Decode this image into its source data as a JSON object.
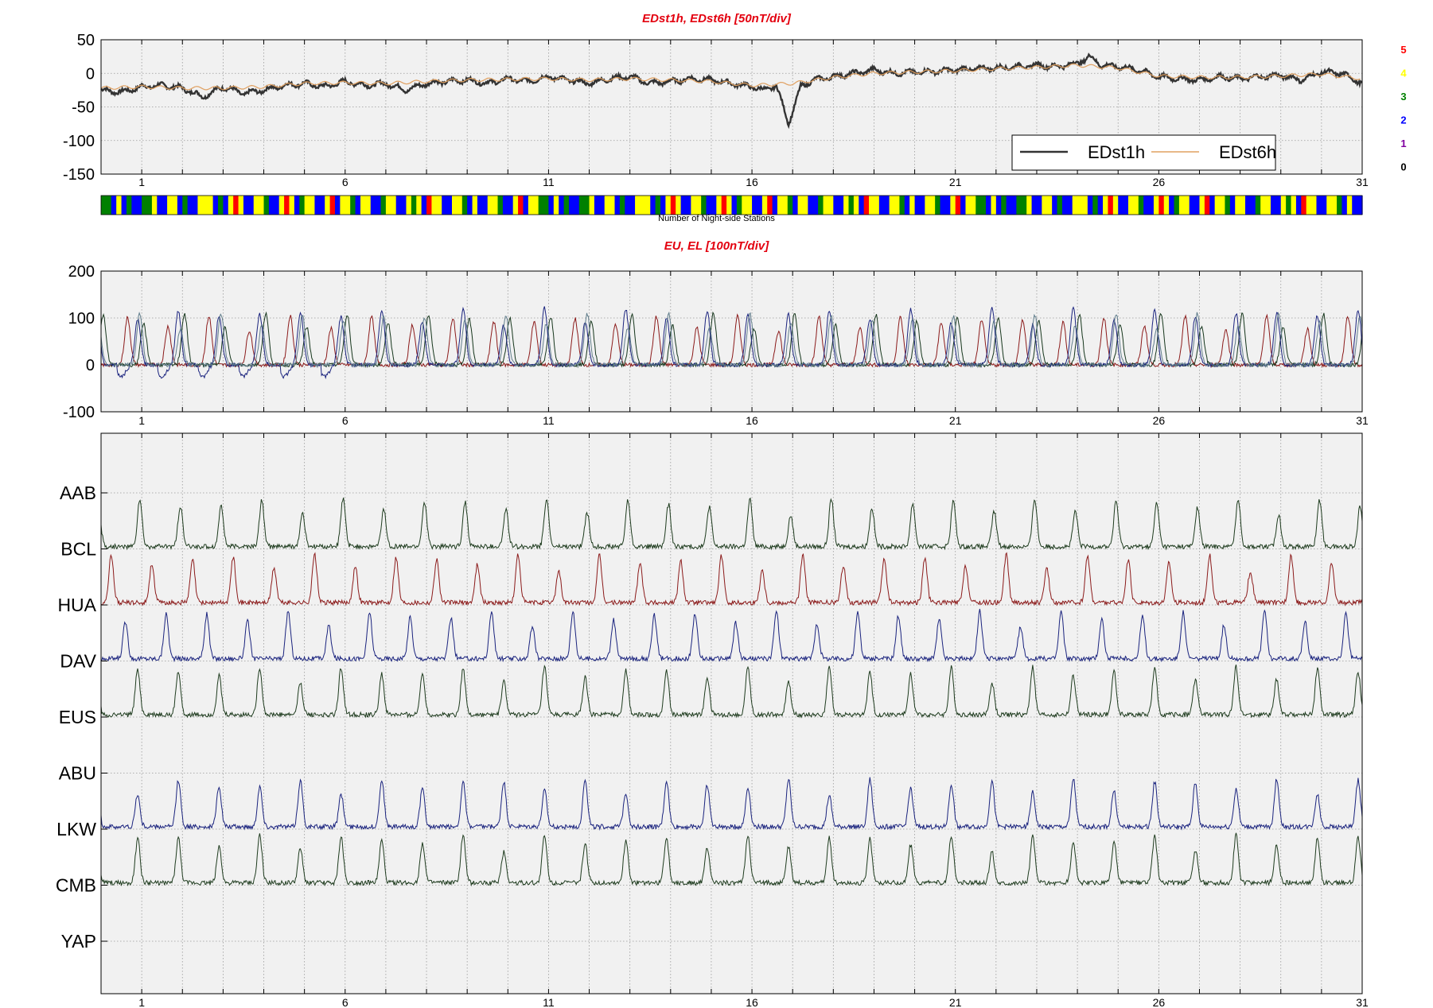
{
  "chart_data": [
    {
      "type": "line",
      "title": "EDst1h, EDst6h [50nT/div]",
      "ylim": [
        -150,
        50
      ],
      "yticks": [
        50,
        0,
        -50,
        -100,
        -150
      ],
      "xlim": [
        0,
        31
      ],
      "xticks": [
        1,
        6,
        11,
        16,
        21,
        26,
        31
      ],
      "grid": true,
      "legend_position": "bottom-right",
      "series": [
        {
          "name": "EDst1h",
          "color": "#333333",
          "x": [
            0,
            0.5,
            1,
            1.5,
            2,
            2.5,
            3,
            3.5,
            4,
            4.5,
            5,
            5.5,
            6,
            6.5,
            7,
            7.5,
            8,
            8.5,
            9,
            9.5,
            10,
            10.5,
            11,
            11.5,
            12,
            12.5,
            13,
            13.5,
            14,
            14.5,
            15,
            15.5,
            16,
            16.3,
            16.6,
            16.9,
            17.2,
            17.5,
            18,
            18.5,
            19,
            19.5,
            20,
            20.5,
            21,
            21.5,
            22,
            22.5,
            23,
            23.5,
            24,
            24.3,
            24.6,
            25,
            25.5,
            26,
            26.5,
            27,
            27.5,
            28,
            28.5,
            29,
            29.5,
            30,
            30.5,
            31
          ],
          "values": [
            -25,
            -28,
            -20,
            -18,
            -22,
            -35,
            -20,
            -30,
            -25,
            -18,
            -15,
            -20,
            -12,
            -18,
            -15,
            -25,
            -15,
            -12,
            -10,
            -15,
            -8,
            -12,
            -5,
            -10,
            -15,
            -8,
            -5,
            -15,
            -12,
            -8,
            -10,
            -15,
            -20,
            -25,
            -18,
            -75,
            -20,
            -10,
            -5,
            0,
            5,
            0,
            2,
            3,
            5,
            7,
            8,
            10,
            12,
            10,
            15,
            25,
            12,
            10,
            5,
            -5,
            -8,
            -10,
            -5,
            -8,
            -5,
            -3,
            -10,
            2,
            0,
            -15
          ]
        },
        {
          "name": "EDst6h",
          "color": "#e0a060",
          "x": [
            0,
            1,
            2,
            3,
            4,
            5,
            6,
            7,
            8,
            9,
            10,
            11,
            12,
            13,
            14,
            15,
            16,
            17,
            18,
            19,
            20,
            21,
            22,
            23,
            24,
            25,
            26,
            27,
            28,
            29,
            30,
            31
          ],
          "values": [
            -22,
            -20,
            -22,
            -22,
            -20,
            -15,
            -14,
            -15,
            -12,
            -10,
            -9,
            -8,
            -10,
            -8,
            -10,
            -12,
            -18,
            -15,
            -6,
            0,
            2,
            4,
            7,
            9,
            12,
            8,
            -4,
            -6,
            -6,
            -4,
            -1,
            -8
          ]
        }
      ],
      "right_scale_labels": [
        {
          "text": "5",
          "color": "#ff0000"
        },
        {
          "text": "4",
          "color": "#ffff00"
        },
        {
          "text": "3",
          "color": "#008000"
        },
        {
          "text": "2",
          "color": "#0000ff"
        },
        {
          "text": "1",
          "color": "#8000a0"
        },
        {
          "text": "0",
          "color": "#000000"
        }
      ]
    },
    {
      "type": "heatmap",
      "caption": "Number of Night-side Stations",
      "colors": {
        "0": "#000000",
        "1": "#800080",
        "2": "#0000ff",
        "3": "#008000",
        "4": "#ffff00",
        "5": "#ff0000"
      },
      "values_note": "one cell per hour, value 0-5",
      "pattern": [
        3,
        3,
        2,
        4,
        2,
        3,
        2,
        2,
        3,
        3,
        4,
        2,
        2,
        4,
        4,
        2,
        3,
        2,
        2,
        4,
        4,
        4,
        2,
        3,
        2,
        4,
        5,
        4,
        2,
        2,
        4,
        4,
        3,
        2,
        2,
        4,
        5,
        4,
        2,
        3,
        4,
        4,
        2,
        2,
        4,
        5,
        2,
        4,
        4,
        3,
        2,
        4,
        4,
        2,
        2,
        3,
        4,
        4,
        2,
        2,
        4,
        3,
        4,
        2,
        5,
        4,
        4,
        2,
        2,
        4,
        4,
        3,
        2,
        4,
        2,
        2,
        4,
        4,
        3,
        2,
        2,
        4,
        5,
        2,
        4,
        4
      ]
    },
    {
      "type": "line",
      "title": "EU, EL   [100nT/div]",
      "ylim": [
        -100,
        200
      ],
      "yticks": [
        200,
        100,
        0,
        -100
      ],
      "xlim": [
        0,
        31
      ],
      "xticks": [
        1,
        6,
        11,
        16,
        21,
        26,
        31
      ],
      "grid": true,
      "series": [
        {
          "color": "#8b1a1a",
          "phase": 0.15,
          "amp": 95
        },
        {
          "color": "#16361c",
          "phase": 0.55,
          "amp": 100
        },
        {
          "color": "#1a237e",
          "phase": 0.4,
          "amp": 110
        },
        {
          "color": "#607d8b",
          "phase": 0.45,
          "amp": 100
        }
      ]
    },
    {
      "type": "line",
      "title": "",
      "xlim": [
        0,
        31
      ],
      "xticks": [
        1,
        6,
        11,
        16,
        21,
        26,
        31
      ],
      "grid": true,
      "stations": [
        {
          "label": "AAB",
          "color": "#1e3b1e",
          "phase": 0.45
        },
        {
          "label": "BCL",
          "color": "#8b1a1a",
          "phase": 0.75
        },
        {
          "label": "HUA",
          "color": "#1a237e",
          "phase": 0.1
        },
        {
          "label": "DAV",
          "color": "#1e3b1e",
          "phase": 0.4
        },
        {
          "label": "EUS",
          "color": "#ffffff",
          "phase": 0.0
        },
        {
          "label": "ABU",
          "color": "#1a237e",
          "phase": 0.4
        },
        {
          "label": "LKW",
          "color": "#1e3b1e",
          "phase": 0.4
        },
        {
          "label": "CMB",
          "color": "#ffffff",
          "phase": 0.0
        },
        {
          "label": "YAP",
          "color": "#ffffff",
          "phase": 0.0
        }
      ]
    }
  ]
}
